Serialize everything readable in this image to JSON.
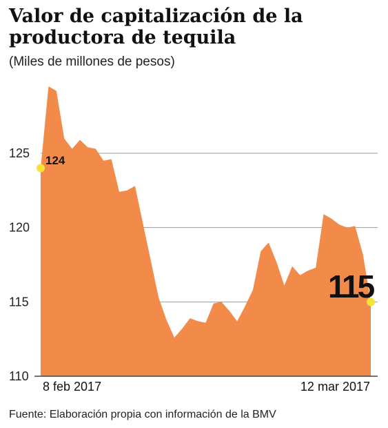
{
  "title": "Valor de capitalización de la productora de tequila",
  "subtitle": "(Miles de millones de pesos)",
  "source": "Fuente: Elaboración propia con información de la BMV",
  "colors": {
    "area": "#f28a4a",
    "marker": "#f5e33a",
    "grid": "#9a9a9a",
    "axis": "#444444"
  },
  "chart_data": {
    "type": "area",
    "title": "Valor de capitalización de la productora de tequila",
    "ylabel": "(Miles de millones de pesos)",
    "xlabel": "",
    "ylim": [
      110,
      129.5
    ],
    "yticks": [
      110,
      115,
      120,
      125
    ],
    "xtick_labels": [
      "8 feb 2017",
      "12 mar 2017"
    ],
    "grid": true,
    "values": [
      124,
      129.5,
      129.2,
      126,
      125.3,
      125.9,
      125.4,
      125.3,
      124.5,
      124.6,
      122.4,
      122.5,
      122.8,
      120.3,
      117.8,
      115.3,
      113.8,
      112.6,
      113.2,
      113.9,
      113.7,
      113.6,
      114.9,
      115.0,
      114.4,
      113.7,
      114.7,
      115.8,
      118.4,
      119.0,
      117.7,
      116.1,
      117.4,
      116.8,
      117.1,
      117.3,
      120.9,
      120.6,
      120.2,
      120.0,
      120.1,
      118.2,
      115.0
    ],
    "annotations": [
      {
        "label": "124",
        "index": 0,
        "value": 124
      },
      {
        "label": "115",
        "index": 42,
        "value": 115
      }
    ]
  }
}
